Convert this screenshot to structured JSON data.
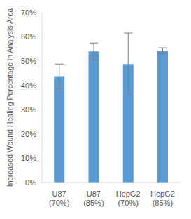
{
  "chart_data": {
    "type": "bar",
    "categories": [
      "U87 (70%)",
      "U87 (85%)",
      "HepG2 (70%)",
      "HepG2 (85%)"
    ],
    "values": [
      43.8,
      54.0,
      48.8,
      54.3
    ],
    "errors": [
      5.0,
      3.5,
      12.8,
      1.2
    ],
    "color": "#5b9bd5",
    "y_label": "Increased Wound Healing Percentage in Analysis Area",
    "ylim": [
      0,
      70
    ],
    "yticks": [
      {
        "value": 0,
        "label": "0%"
      },
      {
        "value": 10,
        "label": "10%"
      },
      {
        "value": 20,
        "label": "20%"
      },
      {
        "value": 30,
        "label": "30%"
      },
      {
        "value": 40,
        "label": "40%"
      },
      {
        "value": 50,
        "label": "50%"
      },
      {
        "value": 60,
        "label": "60%"
      },
      {
        "value": 70,
        "label": "70%"
      }
    ],
    "grid": false
  }
}
